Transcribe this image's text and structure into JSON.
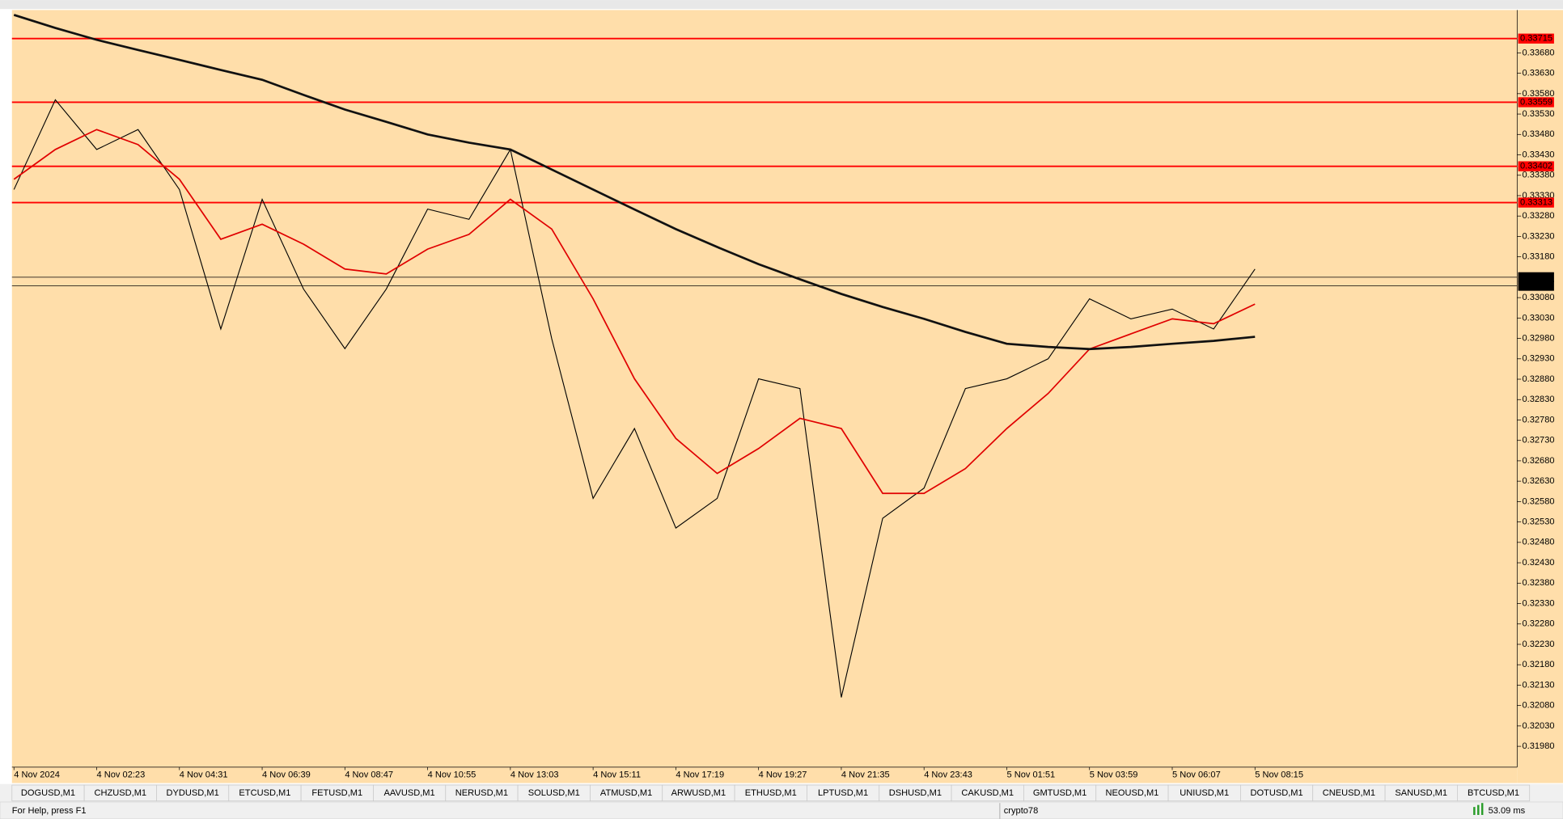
{
  "chart_data": {
    "type": "line",
    "categories": [
      "4 Nov 2024",
      null,
      "4 Nov 02:23",
      null,
      "4 Nov 04:31",
      null,
      "4 Nov 06:39",
      null,
      "4 Nov 08:47",
      null,
      "4 Nov 10:55",
      null,
      "4 Nov 13:03",
      null,
      "4 Nov 15:11",
      null,
      "4 Nov 17:19",
      null,
      "4 Nov 19:27",
      null,
      "4 Nov 21:35",
      null,
      "4 Nov 23:43",
      null,
      "5 Nov 01:51",
      null,
      "5 Nov 03:59",
      null,
      "5 Nov 06:07",
      null,
      "5 Nov 08:15"
    ],
    "series": [
      {
        "color": "#000000",
        "values": [
          0.33345,
          0.33565,
          0.33443,
          0.33492,
          0.33345,
          0.33003,
          0.33321,
          0.33101,
          0.32955,
          0.33101,
          0.33297,
          0.33272,
          0.33443,
          0.32979,
          0.32588,
          0.32759,
          0.32515,
          0.32588,
          0.32881,
          0.32857,
          0.321,
          0.32539,
          0.32613,
          0.32857,
          0.32881,
          0.3293,
          0.33077,
          0.33028,
          0.33052,
          0.33003,
          0.3315
        ]
      },
      {
        "color": "#e00000",
        "values": [
          0.3337,
          0.33443,
          0.33492,
          0.33455,
          0.3337,
          0.33223,
          0.3326,
          0.33211,
          0.3315,
          0.33138,
          0.33199,
          0.33235,
          0.33321,
          0.33248,
          0.33077,
          0.32881,
          0.32735,
          0.32649,
          0.3271,
          0.32784,
          0.32759,
          0.326,
          0.326,
          0.32661,
          0.32759,
          0.32845,
          0.32954,
          0.32991,
          0.33028,
          0.33016,
          0.33064
        ]
      },
      {
        "color": "#111111",
        "values": [
          0.33773,
          0.33741,
          0.33712,
          0.33687,
          0.33663,
          0.33638,
          0.33614,
          0.33577,
          0.33541,
          0.33511,
          0.3348,
          0.3346,
          0.33443,
          0.33394,
          0.33345,
          0.33296,
          0.33248,
          0.33204,
          0.33162,
          0.33125,
          0.33089,
          0.33057,
          0.33028,
          0.32996,
          0.32967,
          0.32959,
          0.32954,
          0.32959,
          0.32967,
          0.32974,
          0.32984
        ]
      }
    ],
    "ylim": [
      0.31929,
      0.33785
    ],
    "yticks": [
      {
        "value": 0.3368,
        "label": "0.33680"
      },
      {
        "value": 0.3363,
        "label": "0.33630"
      },
      {
        "value": 0.3358,
        "label": "0.33580"
      },
      {
        "value": 0.3353,
        "label": "0.33530"
      },
      {
        "value": 0.3348,
        "label": "0.33480"
      },
      {
        "value": 0.3343,
        "label": "0.33430"
      },
      {
        "value": 0.3338,
        "label": "0.33380"
      },
      {
        "value": 0.3333,
        "label": "0.33330"
      },
      {
        "value": 0.3328,
        "label": "0.33280"
      },
      {
        "value": 0.3323,
        "label": "0.33230"
      },
      {
        "value": 0.3318,
        "label": "0.33180"
      },
      {
        "value": 0.3308,
        "label": "0.33080"
      },
      {
        "value": 0.3303,
        "label": "0.33030"
      },
      {
        "value": 0.3298,
        "label": "0.32980"
      },
      {
        "value": 0.3293,
        "label": "0.32930"
      },
      {
        "value": 0.3288,
        "label": "0.32880"
      },
      {
        "value": 0.3283,
        "label": "0.32830"
      },
      {
        "value": 0.3278,
        "label": "0.32780"
      },
      {
        "value": 0.3273,
        "label": "0.32730"
      },
      {
        "value": 0.3268,
        "label": "0.32680"
      },
      {
        "value": 0.3263,
        "label": "0.32630"
      },
      {
        "value": 0.3258,
        "label": "0.32580"
      },
      {
        "value": 0.3253,
        "label": "0.32530"
      },
      {
        "value": 0.3248,
        "label": "0.32480"
      },
      {
        "value": 0.3243,
        "label": "0.32430"
      },
      {
        "value": 0.3238,
        "label": "0.32380"
      },
      {
        "value": 0.3233,
        "label": "0.32330"
      },
      {
        "value": 0.3228,
        "label": "0.32280"
      },
      {
        "value": 0.3223,
        "label": "0.32230"
      },
      {
        "value": 0.3218,
        "label": "0.32180"
      },
      {
        "value": 0.3213,
        "label": "0.32130"
      },
      {
        "value": 0.3208,
        "label": "0.32080"
      },
      {
        "value": 0.3203,
        "label": "0.32030"
      },
      {
        "value": 0.3198,
        "label": "0.31980"
      }
    ],
    "hlines": [
      {
        "value": 0.33715,
        "label": "0.33715",
        "color": "#ff0000"
      },
      {
        "value": 0.33559,
        "label": "0.33559",
        "color": "#ff0000"
      },
      {
        "value": 0.33402,
        "label": "0.33402",
        "color": "#ff0000"
      },
      {
        "value": 0.33313,
        "label": "0.33313",
        "color": "#ff0000"
      },
      {
        "value": 0.3313,
        "label": "0.33130",
        "color": "#000000"
      },
      {
        "value": 0.33109,
        "label": "0.33109",
        "color": "#000000"
      }
    ],
    "background": "#ffdeaa"
  },
  "tabs": [
    "DOGUSD,M1",
    "CHZUSD,M1",
    "DYDUSD,M1",
    "ETCUSD,M1",
    "FETUSD,M1",
    "AAVUSD,M1",
    "NERUSD,M1",
    "SOLUSD,M1",
    "ATMUSD,M1",
    "ARWUSD,M1",
    "ETHUSD,M1",
    "LPTUSD,M1",
    "DSHUSD,M1",
    "CAKUSD,M1",
    "GMTUSD,M1",
    "NEOUSD,M1",
    "UNIUSD,M1",
    "DOTUSD,M1",
    "CNEUSD,M1",
    "SANUSD,M1",
    "BTCUSD,M1"
  ],
  "status_bar": {
    "help": "For Help, press F1",
    "account": "crypto78",
    "ping": "53.09 ms"
  }
}
